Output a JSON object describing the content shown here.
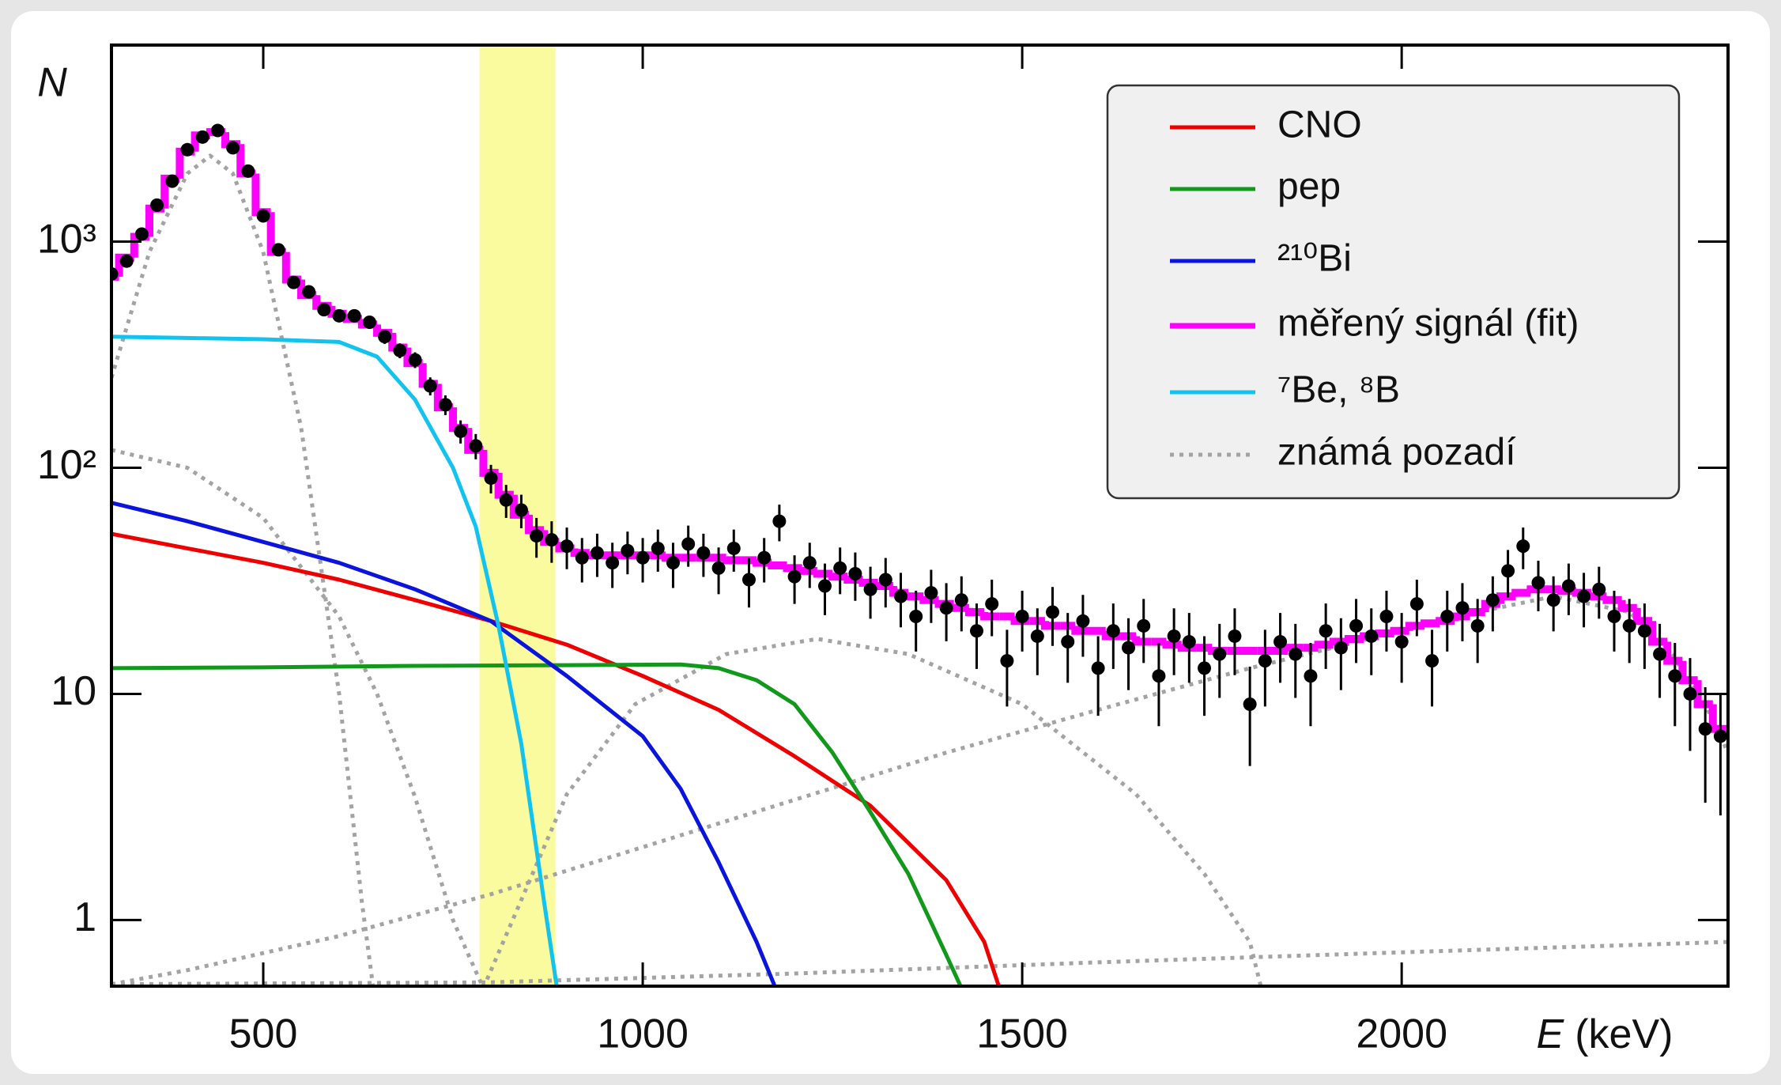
{
  "chart_data": {
    "type": "line",
    "y_label": "N",
    "x_label": {
      "symbol": "E",
      "unit": "(keV)"
    },
    "xlim": [
      300,
      2430
    ],
    "ylim": [
      0.51,
      7400
    ],
    "log_y": true,
    "xticks": [
      500,
      1000,
      1500,
      2000
    ],
    "yticks": [
      1,
      10,
      {
        "value": 100,
        "label": "10²"
      },
      {
        "value": 1000,
        "label": "10³"
      }
    ],
    "highlight_band": {
      "range": [
        785,
        885
      ],
      "color": "#fafa9e"
    },
    "legend": "top-right",
    "series": [
      {
        "name": "CNO",
        "color": "#ee0000",
        "x": [
          300,
          400,
          500,
          600,
          700,
          800,
          900,
          1000,
          1100,
          1200,
          1300,
          1400,
          1450,
          1470
        ],
        "values": [
          51,
          44,
          38,
          32,
          26,
          21,
          16.5,
          12,
          8.5,
          5.3,
          3.2,
          1.5,
          0.8,
          0.5
        ]
      },
      {
        "name": "pep",
        "color": "#11991b",
        "x": [
          300,
          500,
          700,
          900,
          1050,
          1100,
          1150,
          1200,
          1250,
          1300,
          1350,
          1400,
          1420
        ],
        "values": [
          13,
          13.1,
          13.3,
          13.4,
          13.5,
          13,
          11.5,
          9,
          5.5,
          3,
          1.6,
          0.7,
          0.5
        ]
      },
      {
        "name": "²¹⁰Bi",
        "color": "#0a14dd",
        "x": [
          300,
          400,
          500,
          600,
          700,
          800,
          900,
          1000,
          1050,
          1100,
          1150,
          1175
        ],
        "values": [
          70,
          58,
          47,
          38,
          29,
          21,
          12,
          6.5,
          3.8,
          1.8,
          0.8,
          0.5
        ]
      },
      {
        "name": "měřený signál (fit)",
        "color": "#ff00ff",
        "style": "step",
        "values": [
          700,
          850,
          1050,
          1400,
          1900,
          2500,
          2950,
          3050,
          2700,
          2000,
          1350,
          900,
          680,
          580,
          520,
          480,
          455,
          430,
          395,
          340,
          290,
          235,
          185,
          150,
          120,
          95,
          76,
          62,
          53,
          47,
          44,
          42,
          41,
          41,
          41,
          41,
          41,
          40,
          40,
          40,
          40,
          39,
          39,
          38,
          37,
          36,
          35,
          34,
          33,
          32,
          31,
          30,
          28,
          27,
          26,
          25,
          24,
          23,
          22,
          22,
          21,
          21,
          20,
          20,
          19,
          19,
          18,
          18,
          17,
          17,
          16.5,
          16,
          16,
          15.5,
          15.5,
          15.5,
          15.5,
          15.5,
          16,
          16,
          16.5,
          17,
          17.5,
          18,
          18.5,
          19,
          20,
          20.5,
          21,
          22,
          23,
          25,
          27,
          28,
          29,
          29,
          28.5,
          28,
          27,
          26,
          24,
          21,
          17,
          14,
          11.5,
          9,
          7
        ]
      },
      {
        "name": "⁷Be, ⁸B",
        "color": "#12c3f0",
        "x": [
          300,
          400,
          500,
          600,
          650,
          700,
          750,
          780,
          810,
          840,
          870,
          887
        ],
        "values": [
          380,
          375,
          370,
          360,
          310,
          200,
          100,
          55,
          20,
          6,
          1.2,
          0.5
        ]
      },
      {
        "name": "známá pozadí",
        "color": "#a3a3a3",
        "style": "dotted",
        "curves": [
          {
            "x": [
              300,
              350,
              400,
              430,
              460,
              500,
              550,
              600,
              630,
              645
            ],
            "values": [
              250,
              900,
              2000,
              2400,
              2000,
              900,
              150,
              10,
              1.2,
              0.5
            ]
          },
          {
            "x": [
              300,
              400,
              500,
              600,
              650,
              700,
              750,
              790
            ],
            "values": [
              120,
              100,
              60,
              22,
              10,
              3.5,
              1,
              0.5
            ]
          },
          {
            "x": [
              790,
              900,
              990,
              1110,
              1230,
              1350,
              1500,
              1650,
              1740,
              1800,
              1815
            ],
            "values": [
              0.5,
              3.6,
              9,
              15,
              17.5,
              15,
              9,
              3.6,
              1.6,
              0.8,
              0.5
            ]
          },
          {
            "x": [
              300,
              400,
              600,
              800,
              1000,
              1200,
              1400,
              1600,
              1800,
              2000,
              2100,
              2200,
              2300,
              2350,
              2400,
              2430
            ],
            "values": [
              0.52,
              0.6,
              0.85,
              1.3,
              2.1,
              3.4,
              5.5,
              8.5,
              13,
              19,
              23,
              27,
              23,
              16,
              9,
              5.5
            ]
          },
          {
            "x": [
              300,
              800,
              1200,
              1600,
              2000,
              2430
            ],
            "values": [
              0.52,
              0.53,
              0.58,
              0.65,
              0.72,
              0.8
            ]
          }
        ]
      }
    ],
    "data_points": {
      "color": "#000000",
      "x": [
        300,
        320,
        340,
        360,
        380,
        400,
        420,
        440,
        460,
        480,
        500,
        520,
        540,
        560,
        580,
        600,
        620,
        640,
        660,
        680,
        700,
        720,
        740,
        760,
        780,
        800,
        820,
        840,
        860,
        880,
        900,
        920,
        940,
        960,
        980,
        1000,
        1020,
        1040,
        1060,
        1080,
        1100,
        1120,
        1140,
        1160,
        1180,
        1200,
        1220,
        1240,
        1260,
        1280,
        1300,
        1320,
        1340,
        1360,
        1380,
        1400,
        1420,
        1440,
        1460,
        1480,
        1500,
        1520,
        1540,
        1560,
        1580,
        1600,
        1620,
        1640,
        1660,
        1680,
        1700,
        1720,
        1740,
        1760,
        1780,
        1800,
        1820,
        1840,
        1860,
        1880,
        1900,
        1920,
        1940,
        1960,
        1980,
        2000,
        2020,
        2040,
        2060,
        2080,
        2100,
        2120,
        2140,
        2160,
        2180,
        2200,
        2220,
        2240,
        2260,
        2280,
        2300,
        2320,
        2340,
        2360,
        2380,
        2400,
        2420
      ],
      "values": [
        720,
        820,
        1080,
        1450,
        1850,
        2550,
        2900,
        3100,
        2600,
        2050,
        1300,
        920,
        660,
        600,
        500,
        470,
        470,
        440,
        380,
        330,
        300,
        230,
        190,
        145,
        125,
        90,
        72,
        65,
        50,
        48,
        45,
        40,
        42,
        38,
        43,
        40,
        44,
        38,
        46,
        42,
        36,
        44,
        32,
        40,
        58,
        33,
        38,
        30,
        36,
        34,
        29,
        32,
        27,
        22,
        28,
        24,
        26,
        19,
        25,
        14,
        22,
        18,
        23,
        17,
        21,
        13,
        19,
        16,
        20,
        12,
        18,
        17,
        13,
        15,
        18,
        9,
        14,
        17,
        15,
        12,
        19,
        16,
        20,
        18,
        22,
        17,
        25,
        14,
        22,
        24,
        20,
        26,
        35,
        45,
        31,
        26,
        30,
        27,
        29,
        22,
        20,
        19,
        15,
        12,
        10,
        7,
        6.5
      ],
      "errors": [
        38,
        40,
        46,
        53,
        60,
        71,
        75,
        78,
        71,
        63,
        50,
        42,
        36,
        34,
        31,
        30,
        30,
        29,
        27,
        25,
        24,
        21,
        19,
        17,
        16,
        13,
        12,
        11,
        10,
        10,
        9.4,
        8.9,
        9.1,
        8.6,
        9.2,
        8.9,
        9.3,
        8.6,
        9.5,
        9.1,
        8.4,
        9.3,
        7.9,
        8.9,
        10.7,
        8,
        8.6,
        7.7,
        8.4,
        8.2,
        7.5,
        7.9,
        7.3,
        6.6,
        7.4,
        6.9,
        7.1,
        6.1,
        7,
        5.2,
        6.6,
        5.9,
        6.7,
        5.8,
        6.4,
        5,
        6.1,
        5.6,
        6.3,
        4.8,
        5.9,
        5.8,
        5,
        5.4,
        5.9,
        4.2,
        5.2,
        5.8,
        5.4,
        4.8,
        6.1,
        5.6,
        6.3,
        5.9,
        6.6,
        5.8,
        7,
        5.2,
        6.6,
        6.9,
        6.3,
        7.1,
        8.3,
        9.4,
        7.8,
        7.1,
        7.7,
        7.3,
        7.5,
        6.6,
        6.3,
        6.1,
        5.4,
        4.8,
        4.4,
        3.7,
        3.6
      ]
    }
  }
}
